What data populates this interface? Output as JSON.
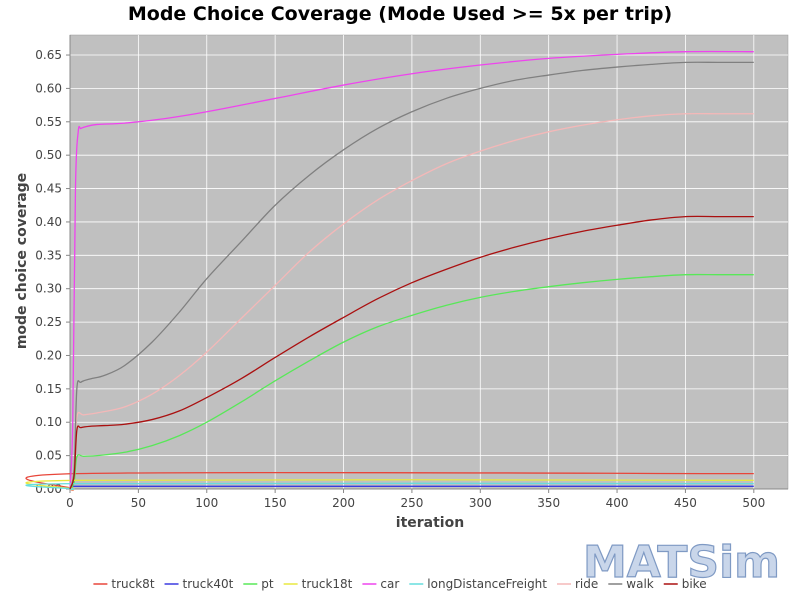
{
  "chart_data": {
    "type": "line",
    "title": "Mode Choice Coverage (Mode Used >= 5x per trip)",
    "xlabel": "iteration",
    "ylabel": "mode choice coverage",
    "xlim": [
      0,
      525
    ],
    "ylim": [
      0,
      0.68
    ],
    "xticks": [
      0,
      50,
      100,
      150,
      200,
      250,
      300,
      350,
      400,
      450,
      500
    ],
    "yticks": [
      0.0,
      0.05,
      0.1,
      0.15,
      0.2,
      0.25,
      0.3,
      0.35,
      0.4,
      0.45,
      0.5,
      0.55,
      0.6,
      0.65
    ],
    "ytick_labels": [
      "0.00",
      "0.05",
      "0.10",
      "0.15",
      "0.20",
      "0.25",
      "0.30",
      "0.35",
      "0.40",
      "0.45",
      "0.50",
      "0.55",
      "0.60",
      "0.65"
    ],
    "grid": true,
    "background": "#c0c0c0",
    "legend_position": "bottom",
    "series": [
      {
        "name": "truck8t",
        "color": "#e8463a",
        "x": [
          0,
          3,
          5,
          500
        ],
        "y": [
          0,
          0,
          0.023,
          0.023
        ]
      },
      {
        "name": "truck40t",
        "color": "#3a3ae0",
        "x": [
          0,
          500
        ],
        "y": [
          0.004,
          0.004
        ]
      },
      {
        "name": "pt",
        "color": "#58e858",
        "x": [
          0,
          3,
          5,
          10,
          20,
          40,
          60,
          80,
          100,
          125,
          150,
          175,
          200,
          225,
          250,
          275,
          300,
          325,
          350,
          375,
          400,
          425,
          450,
          475,
          500
        ],
        "y": [
          0,
          0.01,
          0.048,
          0.049,
          0.05,
          0.055,
          0.065,
          0.08,
          0.1,
          0.13,
          0.162,
          0.192,
          0.22,
          0.243,
          0.26,
          0.275,
          0.287,
          0.296,
          0.303,
          0.309,
          0.314,
          0.318,
          0.321,
          0.321,
          0.321
        ]
      },
      {
        "name": "truck18t",
        "color": "#e8e840",
        "x": [
          0,
          3,
          5,
          500
        ],
        "y": [
          0,
          0,
          0.013,
          0.013
        ]
      },
      {
        "name": "car",
        "color": "#ee44ee",
        "x": [
          0,
          2,
          4,
          6,
          8,
          12,
          20,
          40,
          70,
          100,
          150,
          200,
          250,
          300,
          350,
          400,
          450,
          500
        ],
        "y": [
          0,
          0.1,
          0.45,
          0.535,
          0.54,
          0.543,
          0.546,
          0.548,
          0.555,
          0.565,
          0.585,
          0.605,
          0.622,
          0.635,
          0.645,
          0.651,
          0.655,
          0.655
        ]
      },
      {
        "name": "longDistanceFreight",
        "color": "#66dddd",
        "x": [
          0,
          3,
          5,
          500
        ],
        "y": [
          0,
          0,
          0.008,
          0.008
        ]
      },
      {
        "name": "ride",
        "color": "#f4b8b8",
        "x": [
          0,
          3,
          5,
          10,
          20,
          40,
          60,
          80,
          100,
          125,
          150,
          175,
          200,
          225,
          250,
          275,
          300,
          325,
          350,
          375,
          400,
          425,
          450,
          475,
          500
        ],
        "y": [
          0,
          0.03,
          0.108,
          0.111,
          0.114,
          0.123,
          0.142,
          0.17,
          0.205,
          0.255,
          0.305,
          0.355,
          0.397,
          0.433,
          0.462,
          0.487,
          0.506,
          0.522,
          0.535,
          0.545,
          0.553,
          0.559,
          0.562,
          0.562,
          0.562
        ]
      },
      {
        "name": "walk",
        "color": "#808080",
        "x": [
          0,
          3,
          5,
          8,
          15,
          25,
          40,
          60,
          80,
          100,
          125,
          150,
          175,
          200,
          225,
          250,
          275,
          300,
          325,
          350,
          375,
          400,
          425,
          450,
          475,
          500
        ],
        "y": [
          0,
          0.03,
          0.15,
          0.16,
          0.165,
          0.17,
          0.185,
          0.22,
          0.265,
          0.315,
          0.37,
          0.425,
          0.47,
          0.508,
          0.54,
          0.565,
          0.585,
          0.6,
          0.612,
          0.62,
          0.627,
          0.632,
          0.636,
          0.639,
          0.639,
          0.639
        ]
      },
      {
        "name": "bike",
        "color": "#aa1010",
        "x": [
          0,
          3,
          5,
          8,
          15,
          25,
          40,
          60,
          80,
          100,
          125,
          150,
          175,
          200,
          225,
          250,
          275,
          300,
          325,
          350,
          375,
          400,
          425,
          450,
          475,
          500
        ],
        "y": [
          0,
          0.02,
          0.088,
          0.092,
          0.094,
          0.095,
          0.097,
          0.104,
          0.117,
          0.137,
          0.165,
          0.197,
          0.228,
          0.257,
          0.285,
          0.309,
          0.329,
          0.347,
          0.362,
          0.375,
          0.386,
          0.395,
          0.403,
          0.408,
          0.408,
          0.408
        ]
      }
    ]
  },
  "logo": {
    "text": "MATSim"
  }
}
